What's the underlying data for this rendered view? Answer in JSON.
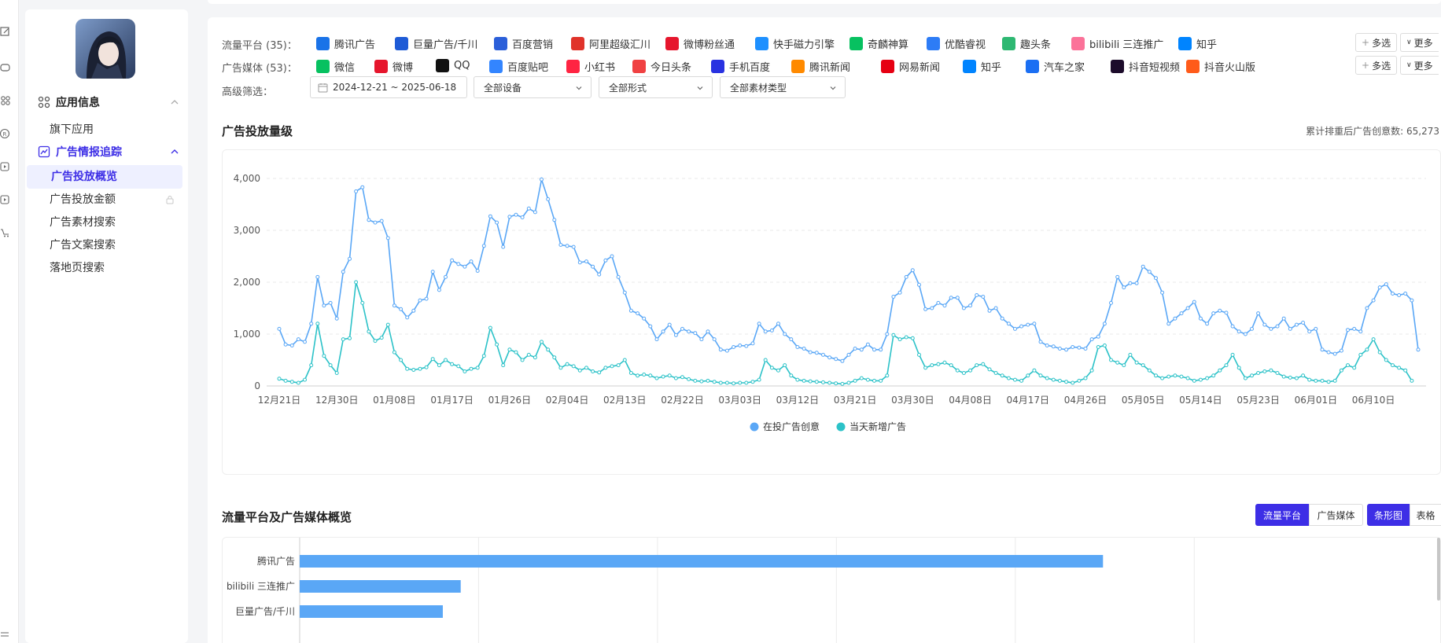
{
  "sidebar": {
    "app_icon": "app-avatar-icon",
    "groups": [
      {
        "label": "应用信息",
        "icon": "app-info-icon",
        "expanded": true,
        "items": [
          {
            "label": "旗下应用"
          }
        ]
      },
      {
        "label": "广告情报追踪",
        "icon": "ad-tracking-icon",
        "expanded": true,
        "highlight": true,
        "items": [
          {
            "label": "广告投放概览",
            "active": true
          },
          {
            "label": "广告投放金额",
            "locked": true
          },
          {
            "label": "广告素材搜索"
          },
          {
            "label": "广告文案搜索"
          },
          {
            "label": "落地页搜索"
          }
        ]
      }
    ]
  },
  "filters": {
    "platform_label": "流量平台 (35)：",
    "platforms": [
      {
        "label": "腾讯广告",
        "icon": "tencent-ads-icon",
        "color": "#1a73e8"
      },
      {
        "label": "巨量广告/千川",
        "icon": "ocean-engine-icon",
        "color": "#1e5bd6"
      },
      {
        "label": "百度营销",
        "icon": "baidu-marketing-icon",
        "color": "#2b5fd9"
      },
      {
        "label": "阿里超级汇川",
        "icon": "ali-huichuan-icon",
        "color": "#e0332a"
      },
      {
        "label": "微博粉丝通",
        "icon": "weibo-fans-icon",
        "color": "#e6162d"
      },
      {
        "label": "快手磁力引擎",
        "icon": "kuaishou-cili-icon",
        "color": "#1e90ff"
      },
      {
        "label": "奇麟神算",
        "icon": "qilin-icon",
        "color": "#07c160"
      },
      {
        "label": "优酷睿视",
        "icon": "youku-ruishi-icon",
        "color": "#2d7cf6"
      },
      {
        "label": "趣头条",
        "icon": "qutoutiao-icon",
        "color": "#2eb872"
      },
      {
        "label": "bilibili 三连推广",
        "icon": "bilibili-icon",
        "color": "#fb7299"
      },
      {
        "label": "知乎",
        "icon": "zhihu-icon",
        "color": "#0084ff"
      }
    ],
    "media_label": "广告媒体 (53)：",
    "media": [
      {
        "label": "微信",
        "icon": "wechat-icon",
        "color": "#07c160"
      },
      {
        "label": "微博",
        "icon": "weibo-icon",
        "color": "#e6162d"
      },
      {
        "label": "QQ",
        "icon": "qq-icon",
        "color": "#111111"
      },
      {
        "label": "百度贴吧",
        "icon": "tieba-icon",
        "color": "#3385ff"
      },
      {
        "label": "小红书",
        "icon": "xiaohongshu-icon",
        "color": "#ff2442"
      },
      {
        "label": "今日头条",
        "icon": "toutiao-icon",
        "color": "#f04142"
      },
      {
        "label": "手机百度",
        "icon": "mobile-baidu-icon",
        "color": "#2932e1"
      },
      {
        "label": "腾讯新闻",
        "icon": "tencent-news-icon",
        "color": "#ff8a00"
      },
      {
        "label": "网易新闻",
        "icon": "netease-news-icon",
        "color": "#e60012"
      },
      {
        "label": "知乎",
        "icon": "zhihu-icon",
        "color": "#0084ff"
      },
      {
        "label": "汽车之家",
        "icon": "autohome-icon",
        "color": "#1b6ff3"
      },
      {
        "label": "抖音短视频",
        "icon": "douyin-icon",
        "color": "#1c0b2b"
      },
      {
        "label": "抖音火山版",
        "icon": "huoshan-icon",
        "color": "#ff5b1a"
      }
    ],
    "multi_select": "多选",
    "more": "更多",
    "advanced_label": "高级筛选：",
    "date_range": "2024-12-21 ~ 2025-06-18",
    "device": "全部设备",
    "form": "全部形式",
    "material_type": "全部素材类型"
  },
  "volume_section": {
    "title": "广告投放量级",
    "summary": "累计排重后广告创意数: 65,273"
  },
  "overview_section": {
    "title": "流量平台及广告媒体概览",
    "toggle_platform": "流量平台",
    "toggle_media": "广告媒体",
    "toggle_bar": "条形图",
    "toggle_table": "表格"
  },
  "colors": {
    "accent": "#3d2ee6",
    "series_active": "#5aa7f6",
    "series_new": "#2cc2c8"
  },
  "chart_data": [
    {
      "type": "line",
      "title": "广告投放量级",
      "x_ticks": [
        "12月21日",
        "12月30日",
        "01月08日",
        "01月17日",
        "01月26日",
        "02月04日",
        "02月13日",
        "02月22日",
        "03月03日",
        "03月12日",
        "03月21日",
        "03月30日",
        "04月08日",
        "04月17日",
        "04月26日",
        "05月05日",
        "05月14日",
        "05月23日",
        "06月01日",
        "06月10日"
      ],
      "y_ticks": [
        "0",
        "1,000",
        "2,000",
        "3,000",
        "4,000"
      ],
      "ylim": [
        0,
        4000
      ],
      "grid": true,
      "legend_position": "bottom-center",
      "x_start": "2024-12-21",
      "series": [
        {
          "name": "在投广告创意",
          "values": [
            1100,
            800,
            780,
            900,
            850,
            1200,
            2100,
            1550,
            1600,
            1300,
            2200,
            2450,
            3750,
            3830,
            3200,
            3150,
            3180,
            2850,
            1550,
            1480,
            1320,
            1450,
            1650,
            1680,
            2200,
            1850,
            2100,
            2420,
            2350,
            2300,
            2400,
            2220,
            2700,
            3270,
            3150,
            2680,
            3260,
            3300,
            3250,
            3420,
            3350,
            3980,
            3600,
            3200,
            2720,
            2700,
            2680,
            2380,
            2400,
            2300,
            2150,
            2420,
            2500,
            2100,
            1800,
            1450,
            1400,
            1300,
            1150,
            900,
            1050,
            1180,
            980,
            1100,
            1050,
            1020,
            900,
            1050,
            900,
            700,
            680,
            750,
            780,
            770,
            820,
            1200,
            1050,
            1070,
            1200,
            1000,
            900,
            750,
            720,
            650,
            640,
            600,
            550,
            520,
            480,
            600,
            720,
            700,
            800,
            700,
            700,
            1000,
            1720,
            1800,
            2100,
            2230,
            1950,
            1480,
            1500,
            1600,
            1550,
            1700,
            1700,
            1500,
            1550,
            1750,
            1720,
            1450,
            1500,
            1300,
            1200,
            1100,
            1150,
            1180,
            1200,
            850,
            780,
            760,
            720,
            700,
            750,
            740,
            720,
            900,
            950,
            1200,
            1600,
            2100,
            1900,
            1980,
            1980,
            2300,
            2200,
            2080,
            1800,
            1200,
            1300,
            1400,
            1500,
            1620,
            1300,
            1200,
            1400,
            1450,
            1410,
            1150,
            1050,
            1000,
            1100,
            1400,
            1180,
            1100,
            1150,
            1300,
            1100,
            1180,
            1220,
            1050,
            1100,
            700,
            650,
            620,
            680,
            1080,
            1100,
            1050,
            1500,
            1650,
            1900,
            1960,
            1780,
            1750,
            1780,
            1650,
            700
          ]
        },
        {
          "name": "当天新增广告",
          "values": [
            140,
            100,
            80,
            60,
            120,
            400,
            1200,
            580,
            400,
            250,
            900,
            920,
            2000,
            1600,
            1050,
            870,
            930,
            1180,
            650,
            500,
            330,
            310,
            330,
            360,
            520,
            400,
            500,
            420,
            380,
            280,
            330,
            350,
            580,
            1120,
            800,
            400,
            700,
            650,
            500,
            600,
            550,
            850,
            700,
            550,
            350,
            420,
            380,
            300,
            350,
            280,
            260,
            350,
            380,
            400,
            500,
            250,
            200,
            220,
            200,
            150,
            180,
            200,
            150,
            170,
            130,
            100,
            90,
            100,
            80,
            60,
            60,
            50,
            60,
            60,
            80,
            120,
            500,
            350,
            300,
            400,
            200,
            120,
            100,
            90,
            80,
            70,
            60,
            50,
            40,
            60,
            100,
            150,
            120,
            100,
            100,
            200,
            980,
            900,
            940,
            920,
            600,
            350,
            400,
            420,
            450,
            400,
            300,
            250,
            300,
            400,
            420,
            320,
            250,
            200,
            150,
            120,
            100,
            200,
            300,
            200,
            150,
            120,
            100,
            80,
            60,
            100,
            150,
            300,
            750,
            780,
            500,
            450,
            400,
            600,
            450,
            400,
            300,
            200,
            150,
            180,
            200,
            180,
            150,
            100,
            120,
            150,
            200,
            300,
            400,
            600,
            350,
            150,
            200,
            250,
            280,
            300,
            250,
            180,
            160,
            150,
            200,
            120,
            100,
            100,
            80,
            100,
            300,
            400,
            350,
            600,
            700,
            900,
            650,
            500,
            400,
            350,
            300,
            100
          ]
        }
      ]
    },
    {
      "type": "bar",
      "title": "流量平台及广告媒体概览",
      "orientation": "horizontal",
      "categories": [
        "腾讯广告",
        "bilibili 三连推广",
        "巨量广告/千川"
      ],
      "values": [
        44900,
        9000,
        8000
      ],
      "grid": true
    }
  ]
}
